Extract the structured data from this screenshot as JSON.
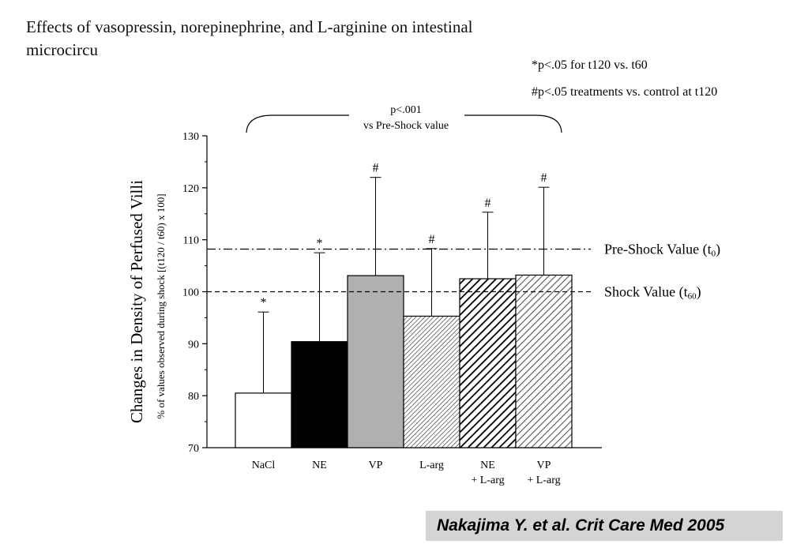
{
  "slide": {
    "title": "Effects of vasopressin, norepinephrine, and L-arginine on intestinal microcircu",
    "notes": [
      "*p<.05 for t120 vs. t60",
      "#p<.05 treatments vs. control at t120"
    ],
    "citation": "Nakajima Y. et al. Crit Care Med 2005"
  },
  "chart_data": {
    "type": "bar",
    "title": "",
    "ylabel": "Changes in Density of Perfused Villi",
    "ylabel2": "% of values observed during shock [(t120 / t60) x 100]",
    "ylim": [
      70,
      130
    ],
    "yticks": [
      70,
      80,
      90,
      100,
      110,
      120,
      130
    ],
    "categories": [
      {
        "line1": "NaCl",
        "line2": ""
      },
      {
        "line1": "NE",
        "line2": ""
      },
      {
        "line1": "VP",
        "line2": ""
      },
      {
        "line1": "L-arg",
        "line2": ""
      },
      {
        "line1": "NE",
        "line2": "+ L-arg"
      },
      {
        "line1": "VP",
        "line2": "+ L-arg"
      }
    ],
    "values": [
      80.5,
      90.4,
      103.1,
      95.3,
      102.5,
      103.2
    ],
    "error_upper": [
      96.1,
      107.5,
      122.0,
      108.3,
      115.3,
      120.1
    ],
    "markers": [
      "*",
      "*",
      "#",
      "#",
      "#",
      "#"
    ],
    "fills": [
      "white",
      "black",
      "gray",
      "fine-hatch",
      "bold-hatch",
      "medium-hatch"
    ],
    "colors": {
      "black": "#000000",
      "gray": "#b0b0b0",
      "white": "#ffffff"
    },
    "reference_lines": [
      {
        "label": "Pre-Shock Value",
        "sub": "0",
        "value": 108.2,
        "style": "dash-dot"
      },
      {
        "label": "Shock Value",
        "sub": "60",
        "value": 100.0,
        "style": "dashed"
      }
    ],
    "bracket": {
      "line1": "p<.001",
      "line2": "vs Pre-Shock value"
    }
  }
}
